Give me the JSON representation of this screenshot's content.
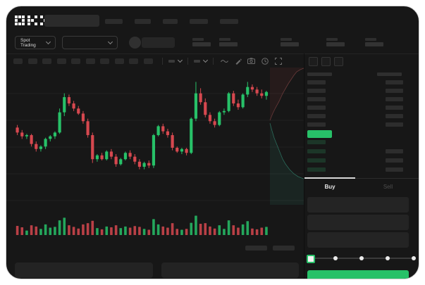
{
  "app": {
    "logo": "OKX"
  },
  "toolbar_top": {
    "market_selector_label": "Spot Trading"
  },
  "trade_panel": {
    "tabs": {
      "buy": "Buy",
      "sell": "Sell"
    }
  },
  "colors": {
    "green": "#27c168",
    "red": "#d6484f",
    "depth_ask_line": "#a85555",
    "depth_bid_line": "#3aa98c",
    "bid_row_bg": "#1c3628",
    "ask_row_bg": "#2d2d2d",
    "grid": "rgba(255,255,255,0.05)"
  },
  "orderbook": {
    "view_icons": [
      "combined-book-icon",
      "bids-book-icon",
      "asks-book-icon"
    ],
    "ask_rows": 6,
    "bid_rows": 4,
    "bid_rows_with_right_bar": 3
  },
  "slider": {
    "dots": 5,
    "value_index": 0
  },
  "chart_data": {
    "type": "candlestick",
    "value_range": [
      0,
      100
    ],
    "candles": [
      [
        61,
        63,
        55,
        57
      ],
      [
        57,
        59,
        52,
        54
      ],
      [
        54,
        56,
        52,
        55
      ],
      [
        55,
        56,
        46,
        48
      ],
      [
        48,
        50,
        42,
        44
      ],
      [
        44,
        47,
        42,
        46
      ],
      [
        46,
        53,
        44,
        52
      ],
      [
        52,
        55,
        50,
        54
      ],
      [
        54,
        58,
        52,
        57
      ],
      [
        57,
        76,
        56,
        73
      ],
      [
        73,
        88,
        70,
        85
      ],
      [
        85,
        87,
        78,
        80
      ],
      [
        80,
        82,
        74,
        76
      ],
      [
        76,
        78,
        71,
        72
      ],
      [
        72,
        74,
        64,
        66
      ],
      [
        66,
        68,
        53,
        55
      ],
      [
        55,
        57,
        33,
        36
      ],
      [
        36,
        40,
        34,
        39
      ],
      [
        39,
        41,
        35,
        36
      ],
      [
        36,
        43,
        35,
        42
      ],
      [
        42,
        44,
        36,
        38
      ],
      [
        38,
        40,
        30,
        32
      ],
      [
        32,
        37,
        31,
        36
      ],
      [
        36,
        42,
        35,
        41
      ],
      [
        41,
        43,
        36,
        38
      ],
      [
        38,
        40,
        32,
        34
      ],
      [
        34,
        36,
        28,
        30
      ],
      [
        30,
        34,
        28,
        33
      ],
      [
        33,
        35,
        29,
        31
      ],
      [
        31,
        56,
        29,
        55
      ],
      [
        55,
        63,
        54,
        62
      ],
      [
        62,
        64,
        56,
        58
      ],
      [
        58,
        60,
        53,
        55
      ],
      [
        55,
        57,
        43,
        45
      ],
      [
        45,
        46,
        41,
        42
      ],
      [
        42,
        45,
        40,
        44
      ],
      [
        44,
        45,
        39,
        41
      ],
      [
        41,
        69,
        40,
        68
      ],
      [
        68,
        97,
        66,
        88
      ],
      [
        88,
        92,
        79,
        81
      ],
      [
        81,
        84,
        69,
        71
      ],
      [
        71,
        73,
        64,
        66
      ],
      [
        66,
        68,
        61,
        63
      ],
      [
        63,
        74,
        62,
        73
      ],
      [
        73,
        76,
        71,
        74
      ],
      [
        74,
        89,
        73,
        88
      ],
      [
        88,
        90,
        78,
        80
      ],
      [
        80,
        83,
        75,
        77
      ],
      [
        77,
        88,
        76,
        87
      ],
      [
        87,
        97,
        85,
        93
      ],
      [
        93,
        95,
        89,
        91
      ],
      [
        91,
        93,
        86,
        88
      ],
      [
        88,
        91,
        84,
        86
      ],
      [
        86,
        90,
        83,
        89
      ]
    ],
    "volumes": [
      45,
      38,
      22,
      48,
      42,
      30,
      52,
      36,
      40,
      72,
      85,
      48,
      40,
      32,
      52,
      58,
      70,
      34,
      28,
      42,
      38,
      48,
      34,
      42,
      36,
      44,
      40,
      30,
      26,
      78,
      52,
      42,
      36,
      58,
      30,
      26,
      30,
      60,
      95,
      55,
      58,
      42,
      32,
      48,
      30,
      72,
      48,
      36,
      52,
      68,
      32,
      28,
      36,
      40
    ],
    "depth": {
      "ask_curve": [
        [
          374,
          75
        ],
        [
          378,
          65
        ],
        [
          382,
          57
        ],
        [
          387,
          48
        ],
        [
          392,
          37
        ],
        [
          396,
          30
        ],
        [
          400,
          23
        ],
        [
          404,
          17
        ],
        [
          408,
          11
        ],
        [
          412,
          6
        ],
        [
          417,
          3
        ],
        [
          422,
          1
        ]
      ],
      "bid_curve": [
        [
          374,
          79
        ],
        [
          377,
          90
        ],
        [
          380,
          100
        ],
        [
          384,
          110
        ],
        [
          388,
          120
        ],
        [
          392,
          130
        ],
        [
          396,
          137
        ],
        [
          402,
          145
        ],
        [
          408,
          151
        ],
        [
          414,
          155
        ],
        [
          419,
          157
        ],
        [
          422,
          158
        ]
      ]
    }
  }
}
